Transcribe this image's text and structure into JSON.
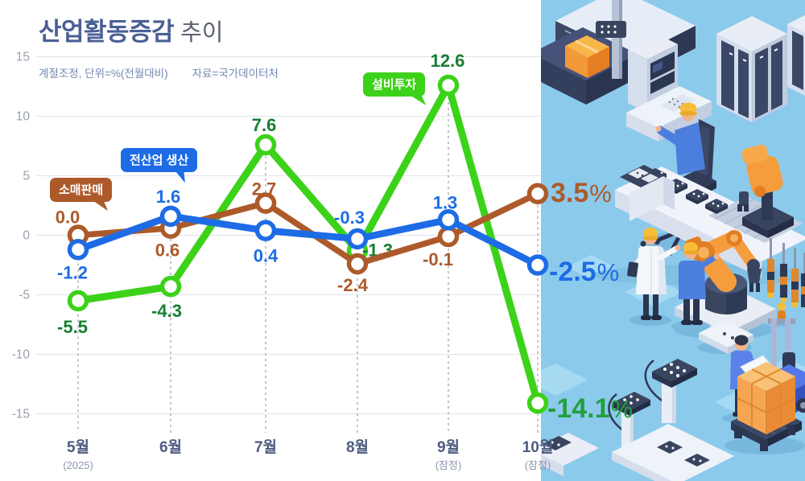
{
  "header": {
    "title_strong": "산업활동증감",
    "title_rest": "추이",
    "subtitle_left": "계절조정, 단위=%(전월대비)",
    "subtitle_right": "자료=국가데이터처"
  },
  "badges": [
    {
      "label": "소매판매",
      "color": "#ad5a2a"
    },
    {
      "label": "전산업 생산",
      "color": "#1d6ce6"
    },
    {
      "label": "설비투자",
      "color": "#3cd219"
    }
  ],
  "chart_data": {
    "type": "line",
    "title": "산업활동증감 추이",
    "unit": "%",
    "categories": [
      "5월",
      "6월",
      "7월",
      "8월",
      "9월",
      "10월"
    ],
    "category_subs": [
      "(2025)",
      "",
      "",
      "",
      "(잠정)",
      "(잠정)"
    ],
    "yticks": [
      15,
      10,
      5,
      0,
      -5,
      -10,
      -15
    ],
    "ylim": [
      -15,
      15
    ],
    "grid": true,
    "legend_position": "badges-on-chart",
    "series": [
      {
        "name": "소매판매",
        "slug": "retail-sales",
        "z": 1,
        "color": "#ad5a2a",
        "label_color": "#ad5a2a",
        "values": [
          0.0,
          0.6,
          2.7,
          -2.4,
          -0.1,
          3.5
        ],
        "point_labels": [
          "0.0",
          "0.6",
          "2.7",
          "-2.4",
          "-0.1"
        ],
        "final_label": "3.5",
        "final_unit": "%"
      },
      {
        "name": "전산업 생산",
        "slug": "all-industry-production",
        "z": 2,
        "color": "#1d6ce6",
        "label_color": "#1d6ce6",
        "values": [
          -1.2,
          1.6,
          0.4,
          -0.3,
          1.3,
          -2.5
        ],
        "point_labels": [
          "-1.2",
          "1.6",
          "0.4",
          "-0.3",
          "1.3"
        ],
        "final_label": "-2.5",
        "final_unit": "%"
      },
      {
        "name": "설비투자",
        "slug": "facility-investment",
        "z": 0,
        "color": "#3cd219",
        "label_color": "#177e31",
        "final_color": "#22a03c",
        "values": [
          -5.5,
          -4.3,
          7.6,
          -1.3,
          12.6,
          -14.1
        ],
        "point_labels": [
          "-5.5",
          "-4.3",
          "7.6",
          "-1.3",
          "12.6"
        ],
        "final_label": "-14.1",
        "final_unit": "%"
      }
    ]
  },
  "illustration": {
    "theme": "isometric smart factory",
    "bg_color": "#8ccaec",
    "accent_orange": "#f59d3c",
    "accent_navy": "#39455f"
  }
}
